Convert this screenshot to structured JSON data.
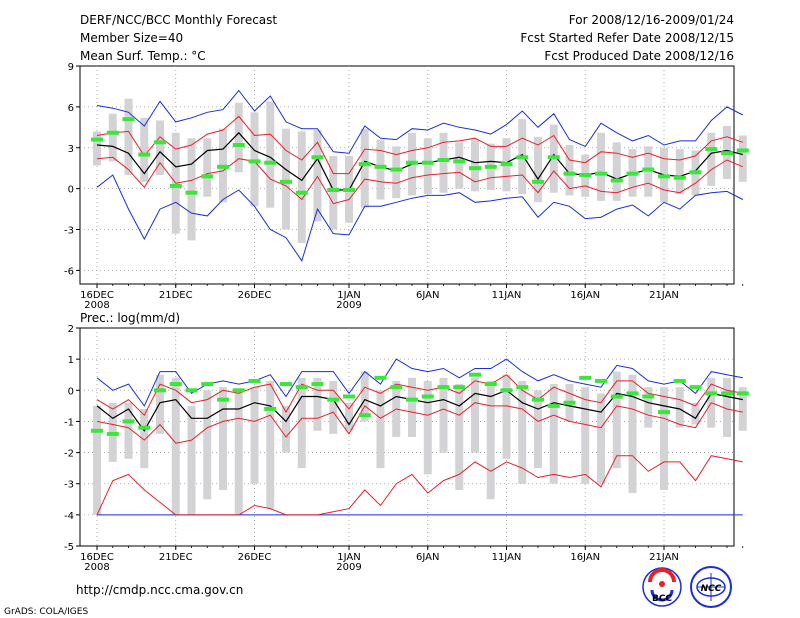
{
  "header": {
    "title": "DERF/NCC/BCC Monthly Forecast",
    "member_size": "Member Size=40",
    "period": "For 2008/12/16-2009/01/24",
    "refer_date": "Fcst Started Refer Date 2008/12/15",
    "produced_date": "Fcst Produced Date 2008/12/16"
  },
  "footer": {
    "url": "http://cmdp.ncc.cma.gov.cn",
    "grads": "GrADS: COLA/IGES",
    "logo_bcc": "BCC",
    "logo_ncc": "NCC"
  },
  "colors": {
    "box": "#d3d3d5",
    "ensemble_mean": "#000000",
    "std_band": "#e8202a",
    "extreme": "#1a2fd8",
    "observed": "#39e639",
    "grid": "#9a9a9a"
  },
  "chart_data": [
    {
      "type": "box-line",
      "title": "Mean Surf. Temp.: °C",
      "ylim": [
        -7,
        9
      ],
      "yticks": [
        -6,
        -3,
        0,
        3,
        6,
        9
      ],
      "x_start_day": 16,
      "x_labels": [
        {
          "day": 16,
          "text": "16DEC",
          "year": "2008"
        },
        {
          "day": 21,
          "text": "21DEC"
        },
        {
          "day": 26,
          "text": "26DEC"
        },
        {
          "day": 32,
          "text": "1JAN",
          "year": "2009"
        },
        {
          "day": 37,
          "text": "6JAN"
        },
        {
          "day": 42,
          "text": "11JAN"
        },
        {
          "day": 47,
          "text": "16JAN"
        },
        {
          "day": 52,
          "text": "21JAN"
        }
      ],
      "series": [
        {
          "name": "max",
          "values": [
            6.1,
            5.9,
            5.6,
            4.6,
            6.4,
            4.9,
            5.2,
            5.6,
            5.8,
            7.2,
            5.7,
            6.8,
            4.9,
            4.4,
            4.4,
            2.7,
            2.6,
            4.6,
            3.7,
            3.6,
            4.4,
            4.3,
            4.8,
            4.5,
            4.3,
            4.0,
            4.7,
            5.7,
            4.5,
            5.5,
            3.6,
            3.1,
            4.8,
            4.1,
            3.5,
            3.9,
            3.2,
            3.5,
            3.5,
            5.0,
            6.0,
            5.4
          ]
        },
        {
          "name": "mean_plus_std",
          "values": [
            3.9,
            4.1,
            4.2,
            2.4,
            3.8,
            2.9,
            3.2,
            4.0,
            4.3,
            5.3,
            3.9,
            4.0,
            2.8,
            2.1,
            3.4,
            1.1,
            1.1,
            2.9,
            2.8,
            2.5,
            2.8,
            3.0,
            3.4,
            3.5,
            3.7,
            3.1,
            3.1,
            3.7,
            3.2,
            3.9,
            2.1,
            1.9,
            2.7,
            2.6,
            2.3,
            2.6,
            2.2,
            2.1,
            2.4,
            3.5,
            3.8,
            3.4
          ]
        },
        {
          "name": "mean",
          "values": [
            3.2,
            3.1,
            2.6,
            1.1,
            2.7,
            1.6,
            1.8,
            2.8,
            2.9,
            4.1,
            2.8,
            2.3,
            1.4,
            0.6,
            2.2,
            -0.1,
            -0.1,
            2.0,
            1.6,
            1.3,
            1.8,
            1.9,
            2.1,
            2.3,
            1.9,
            2.0,
            1.9,
            2.5,
            0.7,
            2.5,
            1.1,
            1.0,
            1.2,
            0.7,
            1.1,
            1.4,
            1.0,
            0.9,
            1.3,
            2.6,
            2.8,
            2.5
          ]
        },
        {
          "name": "mean_minus_std",
          "values": [
            2.2,
            2.3,
            1.4,
            0.1,
            1.9,
            0.4,
            0.6,
            1.1,
            1.3,
            2.2,
            2.0,
            0.7,
            0.2,
            -0.8,
            0.9,
            -1.1,
            -0.8,
            0.7,
            0.5,
            0.4,
            0.8,
            1.0,
            1.1,
            1.2,
            0.5,
            0.8,
            0.9,
            1.0,
            -0.3,
            1.3,
            0.0,
            0.2,
            -0.2,
            -0.3,
            0.1,
            0.4,
            -0.1,
            -0.3,
            0.4,
            1.4,
            2.1,
            1.6
          ]
        },
        {
          "name": "min",
          "values": [
            0.1,
            1.0,
            -1.5,
            -3.7,
            -1.5,
            -1.0,
            -1.8,
            -2.0,
            -0.8,
            -0.1,
            -1.3,
            -3.0,
            -3.6,
            -5.3,
            -1.5,
            -3.3,
            -3.4,
            -1.3,
            -1.3,
            -1.0,
            -0.7,
            -0.5,
            -0.5,
            -0.3,
            -1.0,
            -0.9,
            -0.7,
            -0.6,
            -2.1,
            -1.0,
            -1.3,
            -2.2,
            -2.1,
            -1.5,
            -1.2,
            -2.0,
            -1.0,
            -1.5,
            -0.5,
            -0.3,
            -0.2,
            -0.8
          ]
        },
        {
          "name": "box_low",
          "values": [
            1.7,
            2.0,
            1.0,
            0.5,
            1.0,
            -3.3,
            -3.8,
            -0.6,
            -1.0,
            1.2,
            -1.3,
            -1.4,
            -3.0,
            -4.0,
            -2.4,
            -3.0,
            -2.5,
            -1.4,
            -0.8,
            -0.7,
            -0.5,
            -0.4,
            -0.3,
            0.0,
            -0.2,
            -0.1,
            -0.2,
            -0.4,
            -1.0,
            -0.3,
            -0.5,
            -0.6,
            -0.9,
            -0.9,
            -0.6,
            -0.6,
            -1.0,
            -0.4,
            -0.5,
            0.2,
            0.7,
            0.5
          ]
        },
        {
          "name": "box_high",
          "values": [
            4.2,
            5.5,
            6.6,
            5.2,
            5.0,
            4.1,
            3.7,
            3.7,
            4.4,
            6.3,
            5.6,
            6.4,
            4.4,
            4.2,
            4.3,
            2.4,
            2.4,
            4.4,
            3.6,
            3.1,
            4.1,
            3.7,
            4.1,
            3.4,
            3.6,
            3.3,
            3.7,
            5.1,
            3.8,
            4.7,
            3.2,
            2.5,
            4.1,
            3.4,
            2.9,
            3.1,
            3.0,
            2.9,
            2.8,
            4.1,
            4.6,
            3.9
          ]
        },
        {
          "name": "observed",
          "values": [
            3.6,
            4.1,
            5.1,
            2.5,
            3.4,
            0.2,
            -0.3,
            0.9,
            1.6,
            3.2,
            2.0,
            1.9,
            0.5,
            -0.3,
            2.3,
            -0.1,
            -0.1,
            1.8,
            1.6,
            1.4,
            1.9,
            1.9,
            2.1,
            2.0,
            1.5,
            1.6,
            1.8,
            2.3,
            0.5,
            2.3,
            1.1,
            1.0,
            1.1,
            0.6,
            1.1,
            1.4,
            0.9,
            0.8,
            1.2,
            2.9,
            2.6,
            2.8
          ]
        }
      ]
    },
    {
      "type": "box-line",
      "title": "Prec.: log(mm/d)",
      "ylim": [
        -5,
        2
      ],
      "yticks": [
        -5,
        -4,
        -3,
        -2,
        -1,
        0,
        1,
        2
      ],
      "x_start_day": 16,
      "x_labels": [
        {
          "day": 16,
          "text": "16DEC",
          "year": "2008"
        },
        {
          "day": 21,
          "text": "21DEC"
        },
        {
          "day": 26,
          "text": "26DEC"
        },
        {
          "day": 32,
          "text": "1JAN",
          "year": "2009"
        },
        {
          "day": 37,
          "text": "6JAN"
        },
        {
          "day": 42,
          "text": "11JAN"
        },
        {
          "day": 47,
          "text": "16JAN"
        },
        {
          "day": 52,
          "text": "21JAN"
        }
      ],
      "series": [
        {
          "name": "max",
          "values": [
            0.4,
            0.0,
            0.2,
            -0.5,
            0.6,
            0.6,
            -0.1,
            0.2,
            0.3,
            0.2,
            0.3,
            0.5,
            -0.2,
            0.6,
            0.6,
            0.6,
            -0.1,
            0.6,
            0.2,
            1.0,
            0.7,
            0.6,
            0.7,
            0.4,
            0.7,
            0.7,
            1.0,
            0.6,
            0.3,
            0.5,
            0.3,
            0.2,
            0.1,
            0.8,
            0.7,
            0.3,
            0.2,
            0.3,
            -0.1,
            0.6,
            0.5,
            0.4
          ]
        },
        {
          "name": "mean_plus_std",
          "values": [
            -0.3,
            -0.6,
            -0.3,
            -0.8,
            0.2,
            0.0,
            -0.4,
            -0.3,
            0.0,
            -0.1,
            0.1,
            0.2,
            -0.7,
            0.2,
            0.0,
            0.0,
            -0.6,
            0.1,
            -0.1,
            0.2,
            0.1,
            0.0,
            0.1,
            -0.1,
            0.3,
            0.2,
            0.5,
            0.0,
            -0.3,
            0.1,
            -0.1,
            -0.3,
            -0.4,
            0.3,
            0.3,
            -0.1,
            -0.2,
            -0.3,
            -0.5,
            0.2,
            0.0,
            -0.1
          ]
        },
        {
          "name": "mean",
          "values": [
            -0.5,
            -0.9,
            -0.6,
            -1.3,
            -0.4,
            -0.3,
            -0.9,
            -0.9,
            -0.6,
            -0.6,
            -0.4,
            -0.5,
            -1.0,
            -0.2,
            -0.2,
            -0.3,
            -1.1,
            -0.3,
            -0.5,
            -0.2,
            -0.3,
            -0.4,
            -0.3,
            -0.5,
            -0.1,
            -0.2,
            0.0,
            -0.4,
            -0.6,
            -0.4,
            -0.5,
            -0.6,
            -0.7,
            -0.1,
            -0.2,
            -0.4,
            -0.5,
            -0.6,
            -0.9,
            -0.1,
            -0.2,
            -0.3
          ]
        },
        {
          "name": "mean_minus_std",
          "values": [
            -1.0,
            -1.1,
            -1.2,
            -1.6,
            -1.1,
            -1.7,
            -1.6,
            -1.2,
            -1.0,
            -0.9,
            -1.0,
            -0.8,
            -1.5,
            -0.9,
            -0.9,
            -0.7,
            -1.4,
            -0.5,
            -0.9,
            -0.6,
            -0.7,
            -0.8,
            -0.6,
            -0.8,
            -0.4,
            -0.5,
            -0.5,
            -0.6,
            -1.0,
            -0.8,
            -1.0,
            -1.1,
            -1.2,
            -0.5,
            -0.6,
            -0.8,
            -0.9,
            -1.1,
            -1.2,
            -0.4,
            -0.6,
            -0.7
          ]
        },
        {
          "name": "min",
          "values": [
            -4.0,
            -2.9,
            -2.7,
            -3.2,
            -3.6,
            -4.0,
            -4.0,
            -4.0,
            -4.0,
            -4.0,
            -3.7,
            -3.8,
            -4.0,
            -4.0,
            -4.0,
            -3.9,
            -3.8,
            -3.2,
            -3.7,
            -3.0,
            -2.7,
            -3.3,
            -2.9,
            -2.7,
            -2.3,
            -2.6,
            -2.3,
            -2.5,
            -2.8,
            -2.7,
            -2.8,
            -2.7,
            -3.1,
            -2.1,
            -2.1,
            -2.6,
            -2.3,
            -2.3,
            -2.9,
            -2.1,
            -2.2,
            -2.3
          ]
        },
        {
          "name": "min_abs",
          "values": [
            -4.0,
            -4.0,
            -4.0,
            -4.0,
            -4.0,
            -4.0,
            -4.0,
            -4.0,
            -4.0,
            -4.0,
            -4.0,
            -4.0,
            -4.0,
            -4.0,
            -4.0,
            -4.0,
            -4.0,
            -4.0,
            -4.0,
            -4.0,
            -4.0,
            -4.0,
            -4.0,
            -4.0,
            -4.0,
            -4.0,
            -4.0,
            -4.0,
            -4.0,
            -4.0,
            -4.0,
            -4.0,
            -4.0,
            -4.0,
            -4.0,
            -4.0,
            -4.0,
            -4.0,
            -4.0,
            -4.0,
            -4.0,
            -4.0
          ]
        },
        {
          "name": "box_low",
          "values": [
            -4.0,
            -2.3,
            -2.2,
            -2.5,
            -1.4,
            -4.0,
            -4.0,
            -3.5,
            -3.2,
            -4.0,
            -3.0,
            -3.8,
            -2.0,
            -2.5,
            -1.3,
            -1.4,
            -1.3,
            -1.0,
            -2.5,
            -1.5,
            -1.5,
            -2.7,
            -2.0,
            -3.2,
            -2.0,
            -3.5,
            -2.2,
            -3.0,
            -2.5,
            -3.0,
            -1.0,
            -3.0,
            -3.0,
            -2.5,
            -3.3,
            -1.2,
            -3.2,
            -1.2,
            -1.1,
            -1.2,
            -1.5,
            -1.3
          ]
        },
        {
          "name": "box_high",
          "values": [
            -0.5,
            -0.4,
            -0.4,
            -0.6,
            0.5,
            0.4,
            -0.5,
            0.0,
            0.1,
            0.0,
            0.1,
            0.3,
            -0.5,
            0.4,
            0.4,
            0.3,
            -0.4,
            0.6,
            0.0,
            0.3,
            0.4,
            0.3,
            0.4,
            0.2,
            0.4,
            0.3,
            0.5,
            0.3,
            0.0,
            0.2,
            0.2,
            0.1,
            -0.1,
            0.6,
            0.5,
            0.1,
            0.1,
            0.1,
            -0.4,
            0.4,
            0.4,
            0.1
          ]
        },
        {
          "name": "observed",
          "values": [
            -1.3,
            -1.4,
            -1.0,
            -1.2,
            0.0,
            0.2,
            0.0,
            0.2,
            -0.3,
            0.0,
            0.3,
            -0.6,
            0.2,
            0.1,
            0.2,
            -0.3,
            -0.2,
            -0.8,
            0.4,
            0.1,
            -0.3,
            -0.2,
            0.1,
            0.1,
            0.5,
            0.2,
            0.0,
            0.1,
            -0.3,
            -0.5,
            -0.4,
            0.4,
            0.3,
            -0.2,
            -0.1,
            -0.2,
            -0.7,
            0.3,
            0.1,
            -0.1,
            -0.1,
            -0.1
          ]
        }
      ]
    }
  ]
}
